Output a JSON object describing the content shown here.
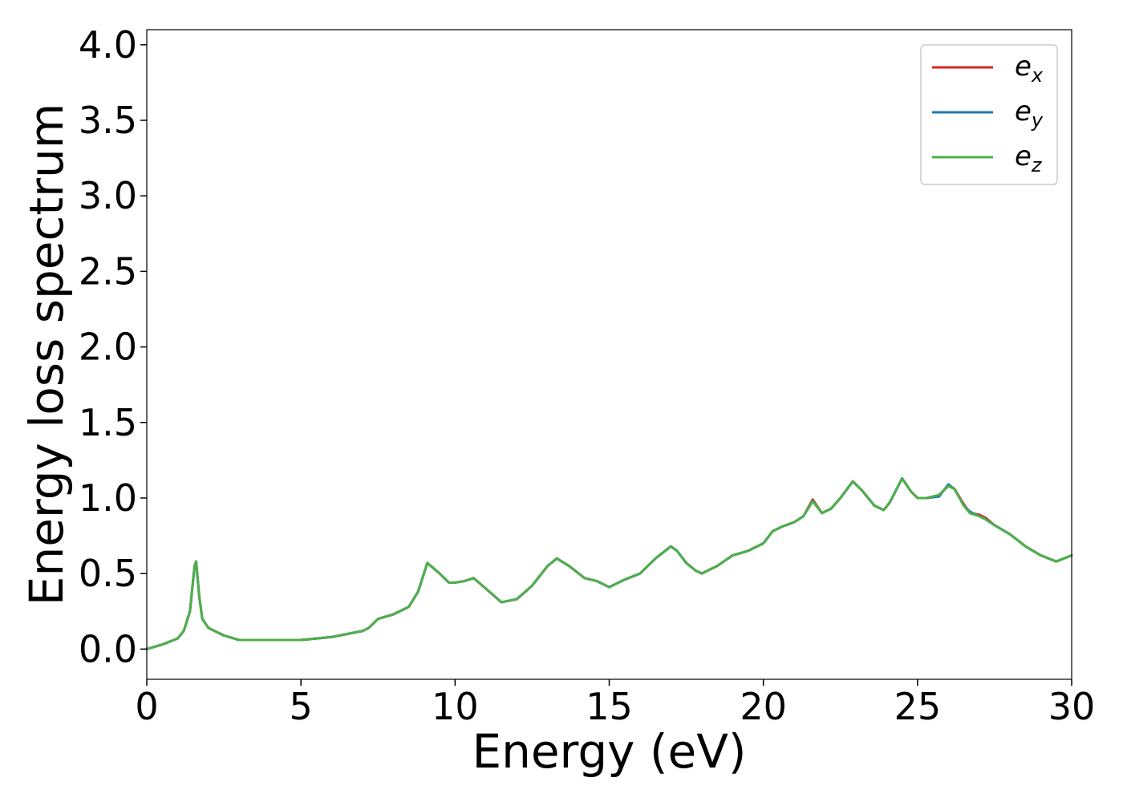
{
  "chart_data": {
    "type": "line",
    "xlabel": "Energy (eV)",
    "ylabel": "Energy loss spectrum",
    "xlim": [
      0,
      30
    ],
    "ylim": [
      -0.2,
      4.1
    ],
    "xticks": [
      "0",
      "5",
      "10",
      "15",
      "20",
      "25",
      "30"
    ],
    "yticks": [
      "0.0",
      "0.5",
      "1.0",
      "1.5",
      "2.0",
      "2.5",
      "3.0",
      "3.5",
      "4.0"
    ],
    "grid": false,
    "legend_position": "top-right",
    "series": [
      {
        "name": "e_x",
        "label_main": "e",
        "label_sub": "x",
        "color": "#d62728",
        "x": [
          0,
          0.5,
          1.0,
          1.2,
          1.4,
          1.5,
          1.55,
          1.6,
          1.7,
          1.8,
          2.0,
          2.5,
          3.0,
          3.5,
          4.0,
          5.0,
          5.5,
          6.0,
          6.5,
          7.0,
          7.2,
          7.5,
          8.0,
          8.5,
          8.8,
          9.1,
          9.5,
          9.8,
          10.0,
          10.3,
          10.6,
          11.0,
          11.5,
          12.0,
          12.5,
          13.0,
          13.3,
          13.7,
          14.2,
          14.6,
          15.0,
          15.5,
          16.0,
          16.5,
          17.0,
          17.2,
          17.5,
          17.8,
          18.0,
          18.5,
          19.0,
          19.5,
          20.0,
          20.3,
          20.6,
          21.0,
          21.3,
          21.6,
          21.9,
          22.2,
          22.5,
          22.9,
          23.2,
          23.6,
          23.9,
          24.1,
          24.5,
          24.8,
          25.0,
          25.3,
          25.7,
          26.0,
          26.2,
          26.5,
          26.7,
          27.0,
          27.2,
          27.5,
          28.0,
          28.5,
          29.0,
          29.5,
          30.0
        ],
        "y": [
          0.0,
          0.03,
          0.07,
          0.12,
          0.25,
          0.45,
          0.55,
          0.58,
          0.35,
          0.2,
          0.14,
          0.09,
          0.06,
          0.06,
          0.06,
          0.06,
          0.07,
          0.08,
          0.1,
          0.12,
          0.14,
          0.2,
          0.23,
          0.28,
          0.38,
          0.57,
          0.5,
          0.44,
          0.44,
          0.45,
          0.47,
          0.4,
          0.31,
          0.33,
          0.42,
          0.55,
          0.6,
          0.55,
          0.47,
          0.45,
          0.41,
          0.46,
          0.5,
          0.6,
          0.68,
          0.65,
          0.57,
          0.52,
          0.5,
          0.55,
          0.62,
          0.65,
          0.7,
          0.78,
          0.81,
          0.84,
          0.88,
          0.99,
          0.9,
          0.93,
          1.0,
          1.11,
          1.05,
          0.95,
          0.92,
          0.97,
          1.13,
          1.04,
          1.0,
          1.0,
          1.02,
          1.08,
          1.06,
          0.96,
          0.9,
          0.89,
          0.87,
          0.82,
          0.76,
          0.68,
          0.62,
          0.58,
          0.62
        ]
      },
      {
        "name": "e_y",
        "label_main": "e",
        "label_sub": "y",
        "color": "#1f77b4",
        "x": [
          0,
          0.5,
          1.0,
          1.2,
          1.4,
          1.5,
          1.55,
          1.6,
          1.7,
          1.8,
          2.0,
          2.5,
          3.0,
          3.5,
          4.0,
          5.0,
          5.5,
          6.0,
          6.5,
          7.0,
          7.2,
          7.5,
          8.0,
          8.5,
          8.8,
          9.1,
          9.5,
          9.8,
          10.0,
          10.3,
          10.6,
          11.0,
          11.5,
          12.0,
          12.5,
          13.0,
          13.3,
          13.7,
          14.2,
          14.6,
          15.0,
          15.5,
          16.0,
          16.5,
          17.0,
          17.2,
          17.5,
          17.8,
          18.0,
          18.5,
          19.0,
          19.5,
          20.0,
          20.3,
          20.6,
          21.0,
          21.3,
          21.6,
          21.9,
          22.2,
          22.5,
          22.9,
          23.2,
          23.6,
          23.9,
          24.1,
          24.5,
          24.8,
          25.0,
          25.3,
          25.7,
          26.0,
          26.2,
          26.5,
          26.7,
          27.0,
          27.2,
          27.5,
          28.0,
          28.5,
          29.0,
          29.5,
          30.0
        ],
        "y": [
          0.0,
          0.03,
          0.07,
          0.12,
          0.25,
          0.45,
          0.55,
          0.58,
          0.35,
          0.2,
          0.14,
          0.09,
          0.06,
          0.06,
          0.06,
          0.06,
          0.07,
          0.08,
          0.1,
          0.12,
          0.14,
          0.2,
          0.23,
          0.28,
          0.38,
          0.57,
          0.5,
          0.44,
          0.44,
          0.45,
          0.47,
          0.4,
          0.31,
          0.33,
          0.42,
          0.55,
          0.6,
          0.55,
          0.47,
          0.45,
          0.41,
          0.46,
          0.5,
          0.6,
          0.68,
          0.65,
          0.57,
          0.52,
          0.5,
          0.55,
          0.62,
          0.65,
          0.7,
          0.78,
          0.81,
          0.84,
          0.88,
          0.98,
          0.9,
          0.93,
          1.0,
          1.11,
          1.05,
          0.95,
          0.92,
          0.97,
          1.13,
          1.04,
          1.0,
          1.0,
          1.01,
          1.09,
          1.06,
          0.95,
          0.91,
          0.88,
          0.86,
          0.82,
          0.76,
          0.68,
          0.62,
          0.58,
          0.62
        ]
      },
      {
        "name": "e_z",
        "label_main": "e",
        "label_sub": "z",
        "color": "#4daf4a",
        "x": [
          0,
          0.5,
          1.0,
          1.2,
          1.4,
          1.5,
          1.55,
          1.6,
          1.7,
          1.8,
          2.0,
          2.5,
          3.0,
          3.5,
          4.0,
          5.0,
          5.5,
          6.0,
          6.5,
          7.0,
          7.2,
          7.5,
          8.0,
          8.5,
          8.8,
          9.1,
          9.5,
          9.8,
          10.0,
          10.3,
          10.6,
          11.0,
          11.5,
          12.0,
          12.5,
          13.0,
          13.3,
          13.7,
          14.2,
          14.6,
          15.0,
          15.5,
          16.0,
          16.5,
          17.0,
          17.2,
          17.5,
          17.8,
          18.0,
          18.5,
          19.0,
          19.5,
          20.0,
          20.3,
          20.6,
          21.0,
          21.3,
          21.6,
          21.9,
          22.2,
          22.5,
          22.9,
          23.2,
          23.6,
          23.9,
          24.1,
          24.5,
          24.8,
          25.0,
          25.3,
          25.7,
          26.0,
          26.2,
          26.5,
          26.7,
          27.0,
          27.2,
          27.5,
          28.0,
          28.5,
          29.0,
          29.5,
          30.0
        ],
        "y": [
          0.0,
          0.03,
          0.07,
          0.12,
          0.25,
          0.45,
          0.55,
          0.58,
          0.35,
          0.2,
          0.14,
          0.09,
          0.06,
          0.06,
          0.06,
          0.06,
          0.07,
          0.08,
          0.1,
          0.12,
          0.14,
          0.2,
          0.23,
          0.28,
          0.38,
          0.57,
          0.5,
          0.44,
          0.44,
          0.45,
          0.47,
          0.4,
          0.31,
          0.33,
          0.42,
          0.55,
          0.6,
          0.55,
          0.47,
          0.45,
          0.41,
          0.46,
          0.5,
          0.6,
          0.68,
          0.65,
          0.57,
          0.52,
          0.5,
          0.55,
          0.62,
          0.65,
          0.7,
          0.78,
          0.81,
          0.84,
          0.88,
          0.98,
          0.9,
          0.93,
          1.0,
          1.11,
          1.05,
          0.95,
          0.92,
          0.97,
          1.13,
          1.04,
          1.0,
          1.0,
          1.02,
          1.08,
          1.06,
          0.95,
          0.9,
          0.88,
          0.86,
          0.82,
          0.76,
          0.68,
          0.62,
          0.58,
          0.62
        ]
      }
    ]
  }
}
